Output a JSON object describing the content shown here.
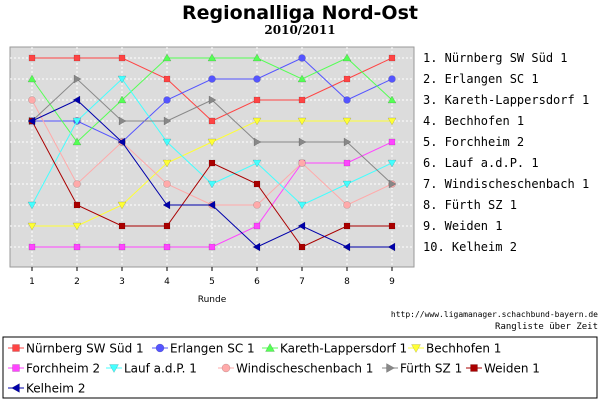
{
  "chart_data": {
    "type": "line",
    "title": "Regionalliga Nord-Ost",
    "subtitle": "2010/2011",
    "xlabel": "Runde",
    "ylabel": "",
    "x": [
      1,
      2,
      3,
      4,
      5,
      6,
      7,
      8,
      9
    ],
    "ylim": [
      1,
      10
    ],
    "y_inverted": true,
    "grid": true,
    "legend_position": "bottom",
    "final_standings": [
      "1. Nürnberg SW Süd 1",
      "2. Erlangen SC 1",
      "3. Kareth-Lappersdorf 1",
      "4. Bechhofen 1",
      "5. Forchheim 2",
      "6. Lauf a.d.P. 1",
      "7. Windischeschenbach 1",
      "8. Fürth SZ 1",
      "9. Weiden 1",
      "10. Kelheim 2"
    ],
    "series": [
      {
        "name": "Nürnberg SW Süd 1",
        "color": "#ff4444",
        "marker": "square",
        "values": [
          1,
          1,
          1,
          2,
          4,
          3,
          3,
          2,
          1
        ]
      },
      {
        "name": "Erlangen SC 1",
        "color": "#5555ff",
        "marker": "circle",
        "values": [
          4,
          4,
          5,
          3,
          2,
          2,
          1,
          3,
          2
        ]
      },
      {
        "name": "Kareth-Lappersdorf 1",
        "color": "#55ff55",
        "marker": "triangle-up",
        "values": [
          2,
          5,
          3,
          1,
          1,
          1,
          2,
          1,
          3
        ]
      },
      {
        "name": "Bechhofen 1",
        "color": "#ffff33",
        "marker": "triangle-down",
        "values": [
          9,
          9,
          8,
          6,
          5,
          4,
          4,
          4,
          4
        ]
      },
      {
        "name": "Forchheim 2",
        "color": "#ff44ff",
        "marker": "square",
        "values": [
          10,
          10,
          10,
          10,
          10,
          9,
          6,
          6,
          5
        ]
      },
      {
        "name": "Lauf a.d.P. 1",
        "color": "#44ffff",
        "marker": "triangle-down",
        "values": [
          8,
          4,
          2,
          5,
          7,
          6,
          8,
          7,
          6
        ]
      },
      {
        "name": "Windischeschenbach 1",
        "color": "#ffaaaa",
        "marker": "circle",
        "values": [
          3,
          7,
          5,
          7,
          8,
          8,
          6,
          8,
          7
        ]
      },
      {
        "name": "Fürth SZ 1",
        "color": "#888888",
        "marker": "triangle-right",
        "values": [
          4,
          2,
          4,
          4,
          3,
          5,
          5,
          5,
          7
        ]
      },
      {
        "name": "Weiden 1",
        "color": "#aa0000",
        "marker": "square",
        "values": [
          4,
          8,
          9,
          9,
          6,
          7,
          10,
          9,
          9
        ]
      },
      {
        "name": "Kelheim 2",
        "color": "#0000aa",
        "marker": "triangle-left",
        "values": [
          4,
          3,
          5,
          8,
          8,
          10,
          9,
          10,
          10
        ]
      }
    ]
  },
  "source_url": "http://www.ligamanager.schachbund-bayern.de",
  "caption": "Rangliste über Zeit"
}
